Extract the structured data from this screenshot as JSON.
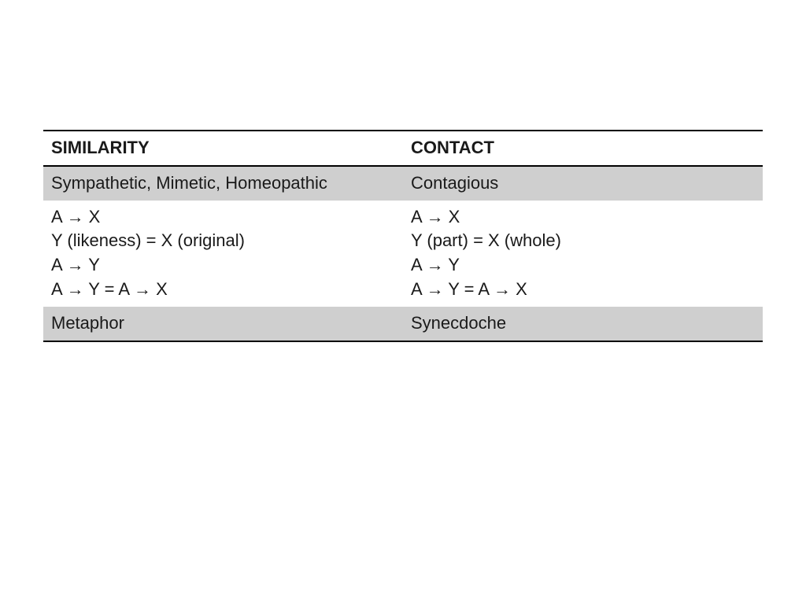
{
  "table": {
    "columns": [
      "SIMILARITY",
      "CONTACT"
    ],
    "rows": [
      {
        "shaded": true,
        "cells": [
          "Sympathetic, Mimetic, Homeopathic",
          "Contagious"
        ]
      },
      {
        "shaded": false,
        "cells": [
          "A → X\nY (likeness) = X (original)\nA → Y\nA → Y = A → X",
          "A → X\nY (part) = X (whole)\nA → Y\nA → Y = A → X"
        ]
      },
      {
        "shaded": true,
        "cells": [
          "Metaphor",
          "Synecdoche"
        ]
      }
    ],
    "font_size": 22,
    "header_border_color": "#000000",
    "shaded_bg": "#cfcfcf",
    "text_color": "#1a1a1a"
  }
}
